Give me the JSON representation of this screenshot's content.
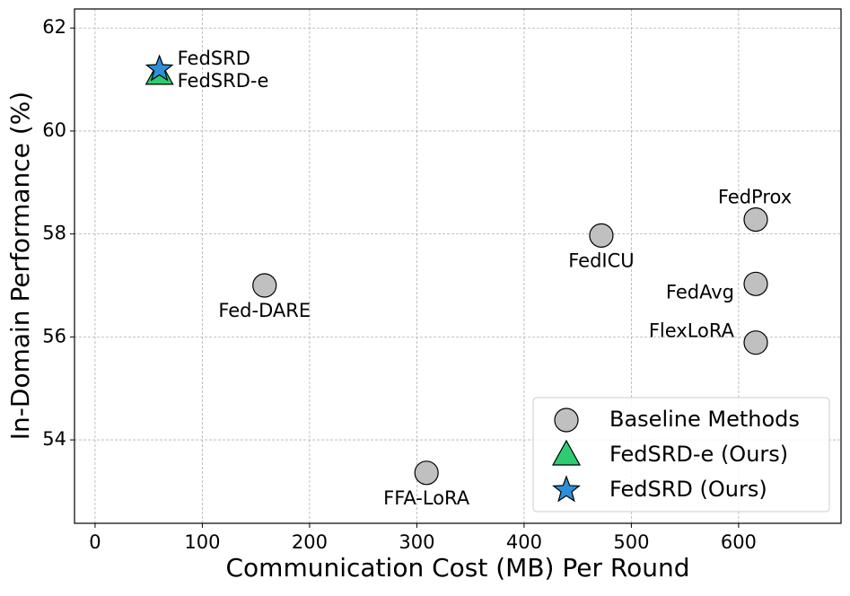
{
  "chart_data": {
    "type": "scatter",
    "xlabel": "Communication Cost (MB) Per Round",
    "ylabel": "In-Domain Performance (%)",
    "xlim": [
      -19.2,
      695.5
    ],
    "ylim": [
      52.38,
      62.37
    ],
    "xticks": [
      0,
      100,
      200,
      300,
      400,
      500,
      600
    ],
    "yticks": [
      54,
      56,
      58,
      60,
      62
    ],
    "grid": true,
    "legend": "lower right",
    "series": [
      {
        "name": "Baseline Methods",
        "marker": "circle",
        "color": "#c0c0c0",
        "x": [
          158,
          309,
          472,
          616,
          616,
          616
        ],
        "values": [
          57.0,
          53.36,
          57.97,
          58.28,
          57.03,
          55.89
        ],
        "labels": [
          "Fed-DARE",
          "FFA-LoRA",
          "FedICU",
          "FedProx",
          "FedAvg",
          "FlexLoRA"
        ]
      },
      {
        "name": "FedSRD-e (Ours)",
        "marker": "triangle",
        "color": "#2ecc71",
        "x": [
          60
        ],
        "values": [
          61.1
        ],
        "labels": [
          "FedSRD-e"
        ]
      },
      {
        "name": "FedSRD (Ours)",
        "marker": "star",
        "color": "#2e8fd8",
        "x": [
          60
        ],
        "values": [
          61.2
        ],
        "labels": [
          "FedSRD"
        ]
      }
    ]
  }
}
